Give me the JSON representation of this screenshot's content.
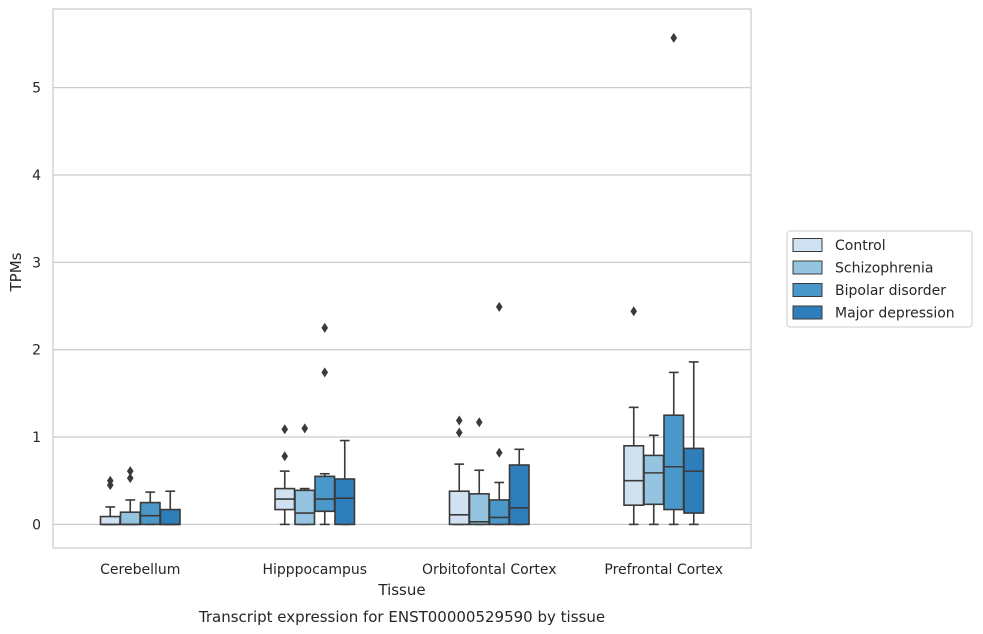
{
  "chart_data": {
    "type": "boxplot",
    "caption": "Transcript expression for ENST00000529590 by tissue",
    "xlabel": "Tissue",
    "ylabel": "TPMs",
    "ylim": [
      -0.27,
      5.9
    ],
    "yticks": [
      0,
      1,
      2,
      3,
      4,
      5
    ],
    "grid": "horizontal",
    "legend_placement": "right",
    "categories": [
      "Cerebellum",
      "Hipppocampus",
      "Orbitofontal Cortex",
      "Prefrontal Cortex"
    ],
    "series": [
      {
        "name": "Control",
        "color": "#d0e1f2",
        "boxes": [
          {
            "whislo": 0,
            "q1": 0,
            "med": 0,
            "q3": 0.09,
            "whishi": 0.2,
            "fliers": [
              0.45,
              0.5
            ]
          },
          {
            "whislo": 0,
            "q1": 0.17,
            "med": 0.29,
            "q3": 0.41,
            "whishi": 0.61,
            "fliers": [
              0.78,
              1.09
            ]
          },
          {
            "whislo": 0,
            "q1": 0,
            "med": 0.11,
            "q3": 0.38,
            "whishi": 0.69,
            "fliers": [
              1.05,
              1.19
            ]
          },
          {
            "whislo": 0,
            "q1": 0.22,
            "med": 0.5,
            "q3": 0.9,
            "whishi": 1.34,
            "fliers": [
              2.44
            ]
          }
        ]
      },
      {
        "name": "Schizophrenia",
        "color": "#94c4df",
        "boxes": [
          {
            "whislo": 0,
            "q1": 0,
            "med": 0,
            "q3": 0.14,
            "whishi": 0.28,
            "fliers": [
              0.53,
              0.61
            ]
          },
          {
            "whislo": 0,
            "q1": 0,
            "med": 0.13,
            "q3": 0.39,
            "whishi": 0.41,
            "fliers": [
              1.1
            ]
          },
          {
            "whislo": 0,
            "q1": 0,
            "med": 0.03,
            "q3": 0.35,
            "whishi": 0.62,
            "fliers": [
              1.17
            ]
          },
          {
            "whislo": 0,
            "q1": 0.23,
            "med": 0.59,
            "q3": 0.79,
            "whishi": 1.02,
            "fliers": []
          }
        ]
      },
      {
        "name": "Bipolar disorder",
        "color": "#4a98c9",
        "boxes": [
          {
            "whislo": 0,
            "q1": 0,
            "med": 0.1,
            "q3": 0.25,
            "whishi": 0.37,
            "fliers": []
          },
          {
            "whislo": 0,
            "q1": 0.15,
            "med": 0.29,
            "q3": 0.55,
            "whishi": 0.58,
            "fliers": [
              1.74,
              2.25
            ]
          },
          {
            "whislo": 0,
            "q1": 0,
            "med": 0.08,
            "q3": 0.28,
            "whishi": 0.48,
            "fliers": [
              0.82,
              2.49
            ]
          },
          {
            "whislo": 0,
            "q1": 0.17,
            "med": 0.66,
            "q3": 1.25,
            "whishi": 1.74,
            "fliers": [
              5.57
            ]
          }
        ]
      },
      {
        "name": "Major depression",
        "color": "#2e7ebc",
        "boxes": [
          {
            "whislo": 0,
            "q1": 0,
            "med": 0,
            "q3": 0.17,
            "whishi": 0.38,
            "fliers": []
          },
          {
            "whislo": 0,
            "q1": 0,
            "med": 0.3,
            "q3": 0.52,
            "whishi": 0.96,
            "fliers": []
          },
          {
            "whislo": 0,
            "q1": 0,
            "med": 0.19,
            "q3": 0.68,
            "whishi": 0.86,
            "fliers": []
          },
          {
            "whislo": 0,
            "q1": 0.13,
            "med": 0.61,
            "q3": 0.87,
            "whishi": 1.86,
            "fliers": []
          }
        ]
      }
    ]
  }
}
